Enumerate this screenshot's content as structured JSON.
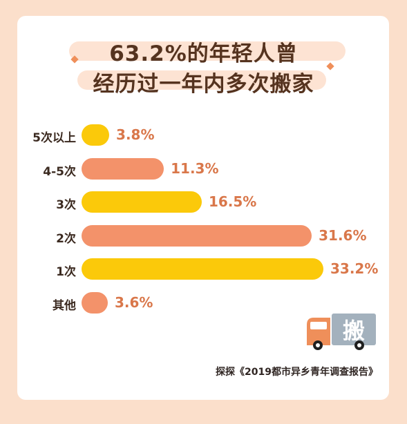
{
  "headline": {
    "line1": "63.2%的年轻人曾",
    "line2": "经历过一年内多次搬家"
  },
  "chart_data": {
    "type": "bar",
    "orientation": "horizontal",
    "categories": [
      "5次以上",
      "4-5次",
      "3次",
      "2次",
      "1次",
      "其他"
    ],
    "values": [
      3.8,
      11.3,
      16.5,
      31.6,
      33.2,
      3.6
    ],
    "value_labels": [
      "3.8%",
      "11.3%",
      "16.5%",
      "31.6%",
      "33.2%",
      "3.6%"
    ],
    "colors": [
      "#fbc90a",
      "#f3926a",
      "#fbc90a",
      "#f3926a",
      "#fbc90a",
      "#f3926a"
    ],
    "title": "",
    "xlabel": "",
    "ylabel": "",
    "grid": false,
    "legend": "none"
  },
  "truck_sign": "搬",
  "source": "探探《2019都市异乡青年调查报告》",
  "colors": {
    "background": "#fbdfcb",
    "card": "#ffffff",
    "title_text": "#55331f",
    "yellow": "#fbc90a",
    "orange": "#f3926a",
    "value_text": "#d9774a"
  }
}
